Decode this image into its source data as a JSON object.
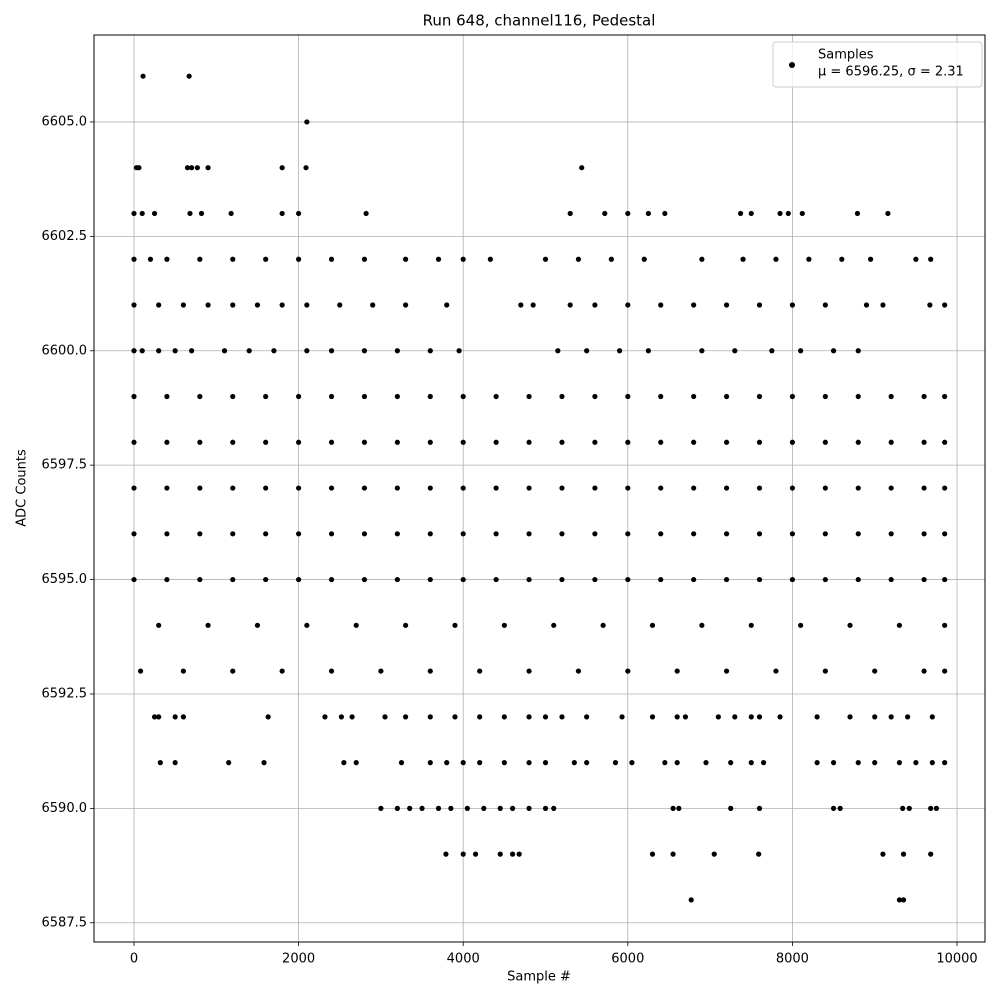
{
  "chart_data": {
    "type": "scatter",
    "title": "Run 648, channel116, Pedestal",
    "x_label": "Sample #",
    "y_label": "ADC Counts",
    "xlim": [
      -486,
      10340
    ],
    "ylim": [
      6587.08,
      6606.9
    ],
    "xticks": [
      0,
      2000,
      4000,
      6000,
      8000,
      10000
    ],
    "yticks": [
      6587.5,
      {
        "value": 6590,
        "label": "6590.0"
      },
      6592.5,
      {
        "value": 6595,
        "label": "6595.0"
      },
      6597.5,
      {
        "value": 6600,
        "label": "6600.0"
      },
      6602.5,
      {
        "value": 6605,
        "label": "6605.0"
      }
    ],
    "grid": true,
    "legend": "upper right",
    "legend_text": "μ = 6596.25, σ = 2.31",
    "x": [
      110,
      670,
      2100,
      30,
      60,
      650,
      700,
      770,
      900,
      1800,
      2090,
      5440,
      0,
      100,
      250,
      680,
      820,
      1180,
      1800,
      2000,
      2820,
      5300,
      5720,
      6000,
      6250,
      6450,
      7370,
      7500,
      7850,
      7950,
      8120,
      8790,
      9160,
      0,
      200,
      400,
      800,
      1200,
      1600,
      2000,
      2400,
      2800,
      3300,
      3700,
      4000,
      4330,
      5000,
      5400,
      5800,
      6200,
      6900,
      7400,
      7800,
      8200,
      8600,
      8950,
      9500,
      9680,
      0,
      300,
      600,
      900,
      1200,
      1500,
      1800,
      2100,
      2500,
      2900,
      3300,
      3800,
      4700,
      4850,
      5300,
      5600,
      6000,
      6400,
      6800,
      7200,
      7600,
      8000,
      8400,
      8900,
      9100,
      9670,
      9850,
      0,
      100,
      300,
      500,
      700,
      1100,
      1400,
      1700,
      2100,
      2400,
      2800,
      3200,
      3600,
      3950,
      5150,
      5500,
      5900,
      6250,
      6900,
      7300,
      7750,
      8100,
      8500,
      8800,
      0,
      400,
      800,
      1200,
      1600,
      2000,
      2400,
      2800,
      3200,
      3600,
      4000,
      4400,
      4800,
      5200,
      5600,
      6000,
      6400,
      6800,
      7200,
      7600,
      8000,
      8400,
      8800,
      9200,
      9600,
      9850,
      0,
      400,
      800,
      1200,
      1600,
      2000,
      2400,
      2800,
      3200,
      3600,
      4000,
      4400,
      4800,
      5200,
      5600,
      6000,
      6400,
      6800,
      7200,
      7600,
      8000,
      8400,
      8800,
      9200,
      9600,
      9850,
      0,
      400,
      800,
      1200,
      1600,
      2000,
      2400,
      2800,
      3200,
      3600,
      4000,
      4400,
      4800,
      5200,
      5600,
      6000,
      6400,
      6800,
      7200,
      7600,
      8000,
      8400,
      8800,
      9200,
      9600,
      9850,
      0,
      400,
      800,
      1200,
      1600,
      2000,
      2400,
      2800,
      3200,
      3600,
      4000,
      4400,
      4800,
      5200,
      5600,
      6000,
      6400,
      6800,
      7200,
      7600,
      8000,
      8400,
      8800,
      9200,
      9600,
      9850,
      0,
      400,
      800,
      1200,
      1600,
      2000,
      2400,
      2800,
      3200,
      3600,
      4000,
      4400,
      4800,
      5200,
      5600,
      6000,
      6400,
      6800,
      7200,
      7600,
      8000,
      8400,
      8800,
      9200,
      9600,
      9850,
      300,
      900,
      1500,
      2100,
      2700,
      3300,
      3900,
      4500,
      5100,
      5700,
      6300,
      6900,
      7500,
      8100,
      8700,
      9300,
      9850,
      80,
      600,
      1200,
      1800,
      2400,
      3000,
      3600,
      4200,
      4800,
      5400,
      6000,
      6600,
      7200,
      7800,
      8400,
      9000,
      9600,
      9850,
      250,
      300,
      500,
      600,
      1630,
      2320,
      2520,
      2650,
      3050,
      3300,
      3600,
      3900,
      4200,
      4500,
      4800,
      5000,
      5200,
      5500,
      5930,
      6300,
      6600,
      6700,
      7100,
      7300,
      7500,
      7600,
      7850,
      8300,
      8700,
      9000,
      9200,
      9400,
      9700,
      320,
      500,
      1150,
      1580,
      2550,
      2700,
      3250,
      3600,
      3800,
      4000,
      4200,
      4500,
      4800,
      5000,
      5350,
      5500,
      5850,
      6050,
      6450,
      6600,
      6950,
      7250,
      7500,
      7650,
      8300,
      8500,
      8800,
      9000,
      9300,
      9500,
      9700,
      9850,
      3000,
      3200,
      3350,
      3500,
      3700,
      3850,
      4050,
      4250,
      4450,
      4600,
      4800,
      5000,
      5100,
      6550,
      6620,
      7250,
      7600,
      8500,
      8580,
      9340,
      9420,
      9680,
      9750,
      3790,
      4000,
      4150,
      4450,
      4600,
      4680,
      6300,
      6550,
      7050,
      7590,
      9100,
      9350,
      9680,
      6770,
      9300,
      9350
    ],
    "series": [
      {
        "name": "Samples",
        "color": "#000000",
        "values": [
          6606,
          6606,
          6605,
          6604,
          6604,
          6604,
          6604,
          6604,
          6604,
          6604,
          6604,
          6604,
          6603,
          6603,
          6603,
          6603,
          6603,
          6603,
          6603,
          6603,
          6603,
          6603,
          6603,
          6603,
          6603,
          6603,
          6603,
          6603,
          6603,
          6603,
          6603,
          6603,
          6603,
          6602,
          6602,
          6602,
          6602,
          6602,
          6602,
          6602,
          6602,
          6602,
          6602,
          6602,
          6602,
          6602,
          6602,
          6602,
          6602,
          6602,
          6602,
          6602,
          6602,
          6602,
          6602,
          6602,
          6602,
          6602,
          6601,
          6601,
          6601,
          6601,
          6601,
          6601,
          6601,
          6601,
          6601,
          6601,
          6601,
          6601,
          6601,
          6601,
          6601,
          6601,
          6601,
          6601,
          6601,
          6601,
          6601,
          6601,
          6601,
          6601,
          6601,
          6601,
          6601,
          6600,
          6600,
          6600,
          6600,
          6600,
          6600,
          6600,
          6600,
          6600,
          6600,
          6600,
          6600,
          6600,
          6600,
          6600,
          6600,
          6600,
          6600,
          6600,
          6600,
          6600,
          6600,
          6600,
          6600,
          6599,
          6599,
          6599,
          6599,
          6599,
          6599,
          6599,
          6599,
          6599,
          6599,
          6599,
          6599,
          6599,
          6599,
          6599,
          6599,
          6599,
          6599,
          6599,
          6599,
          6599,
          6599,
          6599,
          6599,
          6599,
          6599,
          6598,
          6598,
          6598,
          6598,
          6598,
          6598,
          6598,
          6598,
          6598,
          6598,
          6598,
          6598,
          6598,
          6598,
          6598,
          6598,
          6598,
          6598,
          6598,
          6598,
          6598,
          6598,
          6598,
          6598,
          6598,
          6598,
          6597,
          6597,
          6597,
          6597,
          6597,
          6597,
          6597,
          6597,
          6597,
          6597,
          6597,
          6597,
          6597,
          6597,
          6597,
          6597,
          6597,
          6597,
          6597,
          6597,
          6597,
          6597,
          6597,
          6597,
          6597,
          6597,
          6596,
          6596,
          6596,
          6596,
          6596,
          6596,
          6596,
          6596,
          6596,
          6596,
          6596,
          6596,
          6596,
          6596,
          6596,
          6596,
          6596,
          6596,
          6596,
          6596,
          6596,
          6596,
          6596,
          6596,
          6596,
          6596,
          6595,
          6595,
          6595,
          6595,
          6595,
          6595,
          6595,
          6595,
          6595,
          6595,
          6595,
          6595,
          6595,
          6595,
          6595,
          6595,
          6595,
          6595,
          6595,
          6595,
          6595,
          6595,
          6595,
          6595,
          6595,
          6595,
          6594,
          6594,
          6594,
          6594,
          6594,
          6594,
          6594,
          6594,
          6594,
          6594,
          6594,
          6594,
          6594,
          6594,
          6594,
          6594,
          6594,
          6593,
          6593,
          6593,
          6593,
          6593,
          6593,
          6593,
          6593,
          6593,
          6593,
          6593,
          6593,
          6593,
          6593,
          6593,
          6593,
          6593,
          6593,
          6592,
          6592,
          6592,
          6592,
          6592,
          6592,
          6592,
          6592,
          6592,
          6592,
          6592,
          6592,
          6592,
          6592,
          6592,
          6592,
          6592,
          6592,
          6592,
          6592,
          6592,
          6592,
          6592,
          6592,
          6592,
          6592,
          6592,
          6592,
          6592,
          6592,
          6592,
          6592,
          6592,
          6591,
          6591,
          6591,
          6591,
          6591,
          6591,
          6591,
          6591,
          6591,
          6591,
          6591,
          6591,
          6591,
          6591,
          6591,
          6591,
          6591,
          6591,
          6591,
          6591,
          6591,
          6591,
          6591,
          6591,
          6591,
          6591,
          6591,
          6591,
          6591,
          6591,
          6591,
          6591,
          6590,
          6590,
          6590,
          6590,
          6590,
          6590,
          6590,
          6590,
          6590,
          6590,
          6590,
          6590,
          6590,
          6590,
          6590,
          6590,
          6590,
          6590,
          6590,
          6590,
          6590,
          6590,
          6590,
          6589,
          6589,
          6589,
          6589,
          6589,
          6589,
          6589,
          6589,
          6589,
          6589,
          6589,
          6589,
          6589,
          6588,
          6588,
          6588
        ]
      }
    ]
  }
}
